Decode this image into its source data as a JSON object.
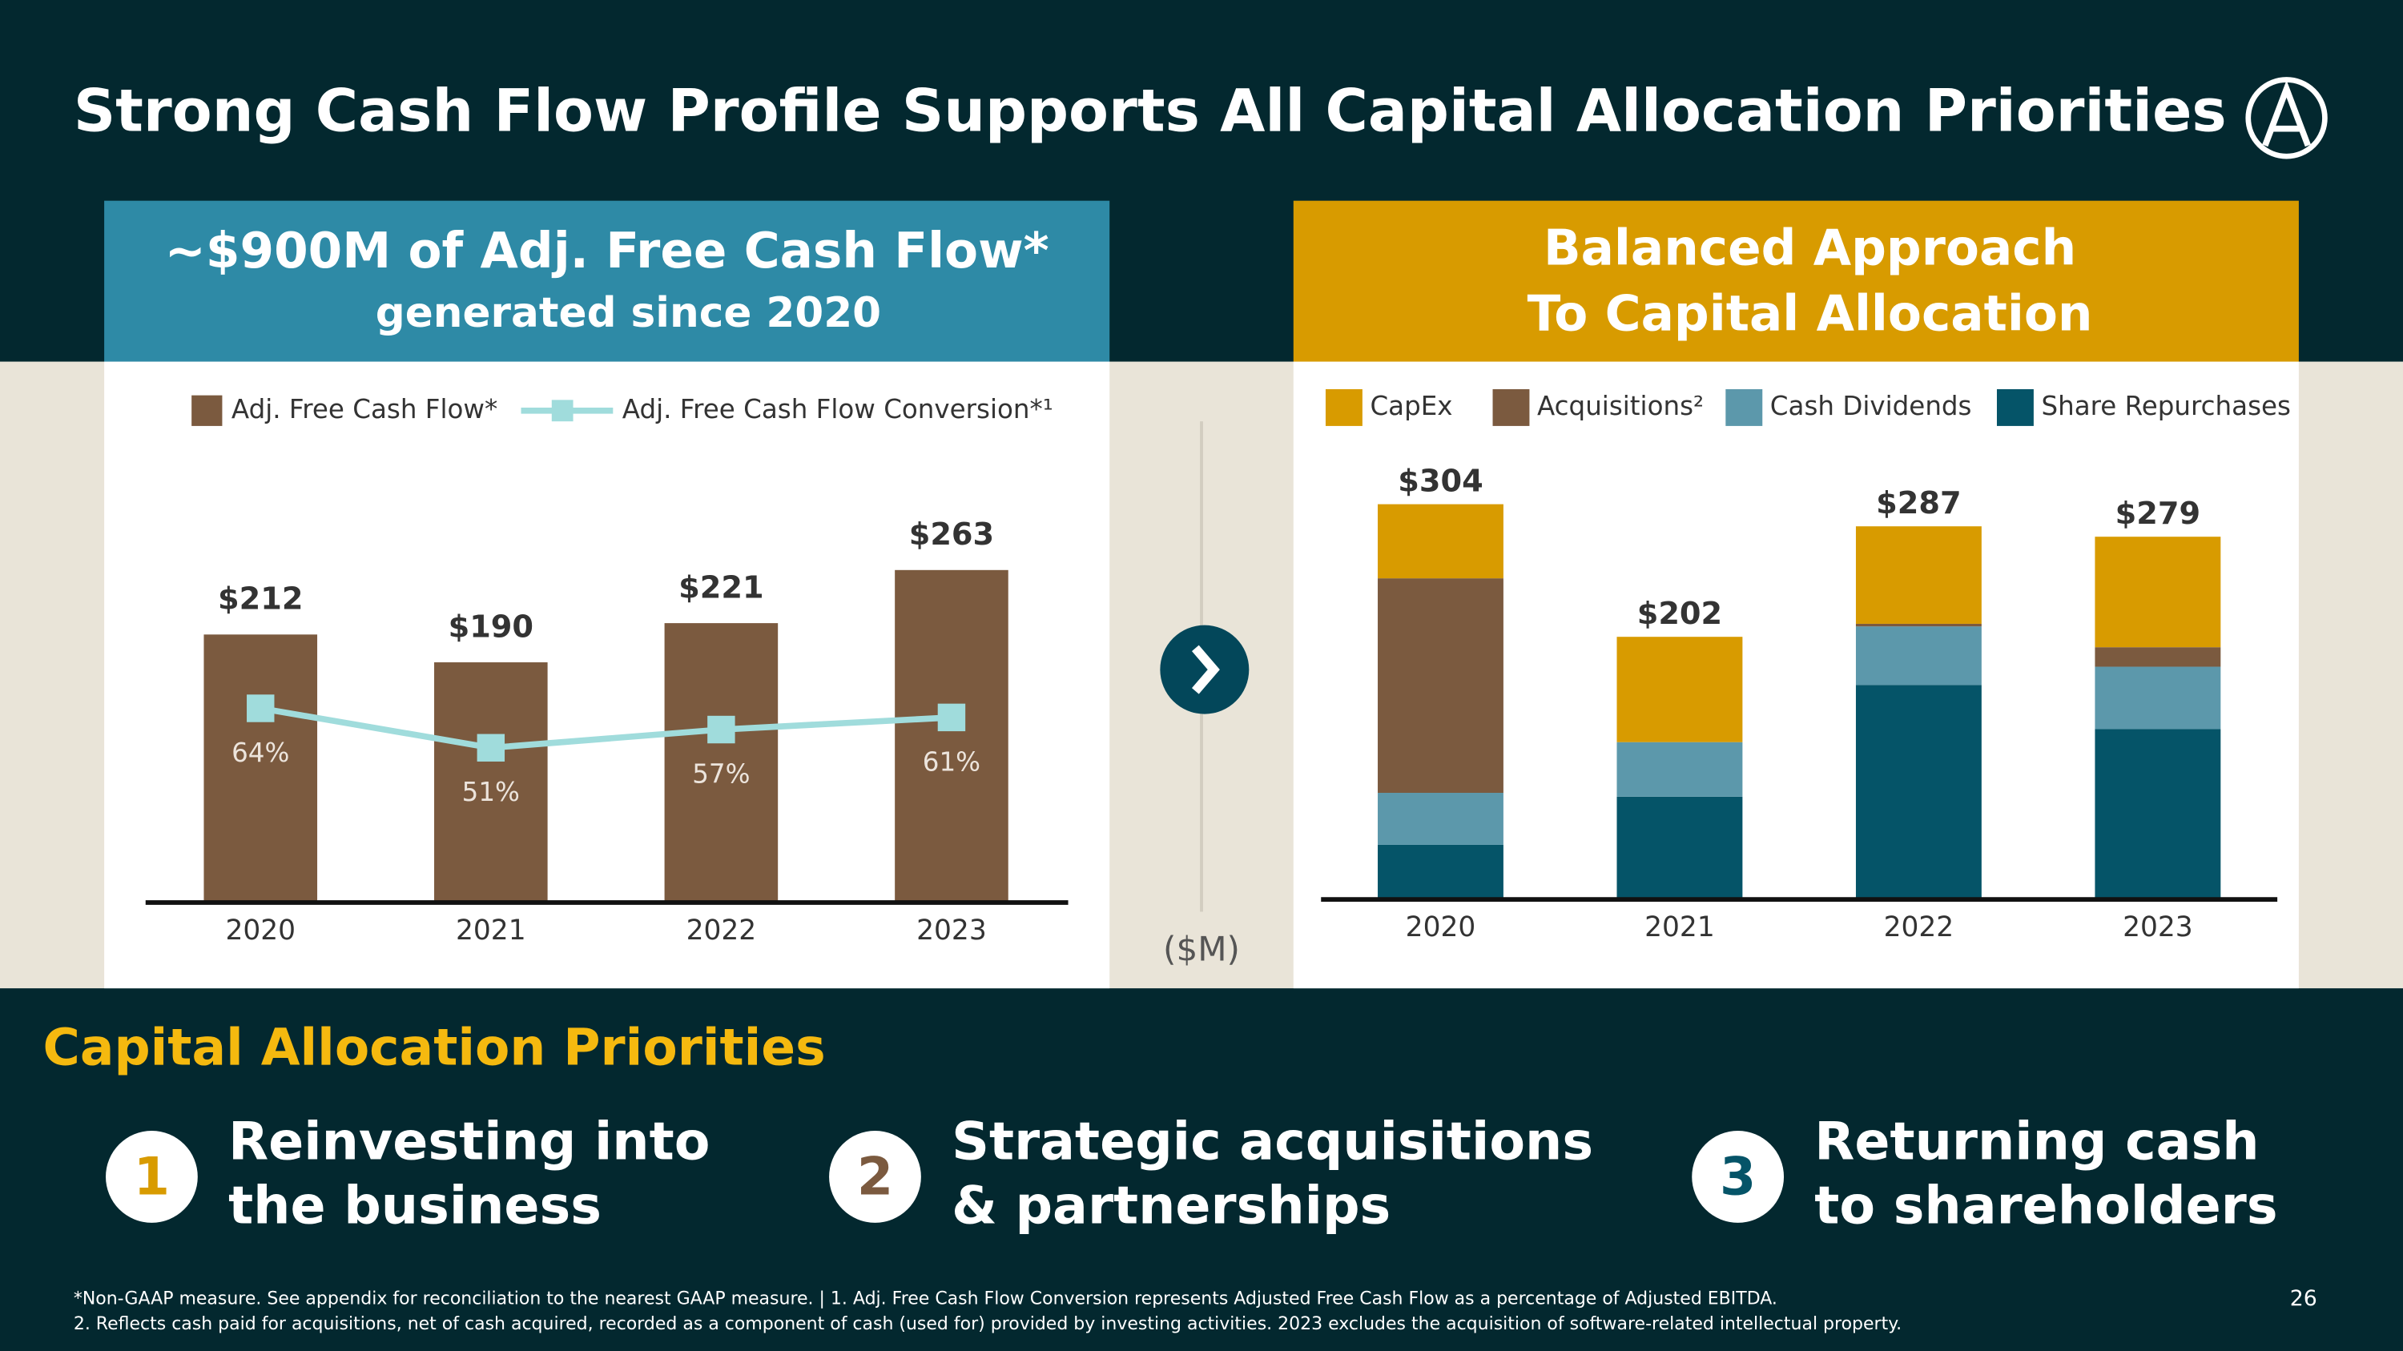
{
  "title": "Strong Cash Flow Profile Supports All Capital Allocation Priorities",
  "chart_data": [
    {
      "type": "bar",
      "title": "~$900M of Adj. Free Cash Flow*",
      "subtitle": "generated since 2020",
      "categories": [
        "2020",
        "2021",
        "2022",
        "2023"
      ],
      "series": [
        {
          "name": "Adj. Free Cash Flow*",
          "type": "bar",
          "color": "#7b5a3f",
          "values": [
            212,
            190,
            221,
            263
          ],
          "value_labels": [
            "$212",
            "$190",
            "$221",
            "$263"
          ]
        },
        {
          "name": "Adj. Free Cash Flow Conversion*¹",
          "type": "line",
          "axis": "y2",
          "color": "#a0dcdc",
          "values": [
            64,
            51,
            57,
            61
          ],
          "value_labels": [
            "64%",
            "51%",
            "57%",
            "61%"
          ]
        }
      ],
      "ylim": [
        0,
        300
      ],
      "y2lim": [
        0,
        125
      ]
    },
    {
      "type": "stacked_bar",
      "title_lines": [
        "Balanced Approach",
        "To Capital Allocation"
      ],
      "unit": "($M)",
      "categories": [
        "2020",
        "2021",
        "2022",
        "2023"
      ],
      "series": [
        {
          "name": "Share Repurchases",
          "color": "#055468",
          "values": [
            42,
            79,
            165,
            131
          ]
        },
        {
          "name": "Cash Dividends",
          "color": "#5c98ab",
          "values": [
            40,
            42,
            45,
            48
          ]
        },
        {
          "name": "Acquisitions²",
          "color": "#7b5a3f",
          "values": [
            165,
            0,
            2,
            15
          ]
        },
        {
          "name": "CapEx",
          "color": "#d89b00",
          "values": [
            57,
            81,
            75,
            85
          ]
        }
      ],
      "totals": [
        304,
        202,
        287,
        279
      ],
      "total_labels": [
        "$304",
        "$202",
        "$287",
        "$279"
      ],
      "ylim": [
        0,
        330
      ]
    }
  ],
  "priorities": {
    "heading": "Capital Allocation Priorities",
    "items": [
      {
        "number": "1",
        "lines": [
          "Reinvesting into",
          "the business"
        ]
      },
      {
        "number": "2",
        "lines": [
          "Strategic acquisitions",
          "& partnerships"
        ]
      },
      {
        "number": "3",
        "lines": [
          "Returning cash",
          "to shareholders"
        ]
      }
    ]
  },
  "footnotes": [
    "*Non-GAAP measure. See appendix for reconciliation to the nearest GAAP measure.   |   1. Adj. Free Cash Flow Conversion represents Adjusted Free Cash Flow as a percentage of Adjusted EBITDA.",
    "2. Reflects cash paid for acquisitions, net of cash acquired, recorded as a component of cash (used for) provided by investing activities. 2023 excludes the acquisition of software-related intellectual property."
  ],
  "page_number": "26"
}
